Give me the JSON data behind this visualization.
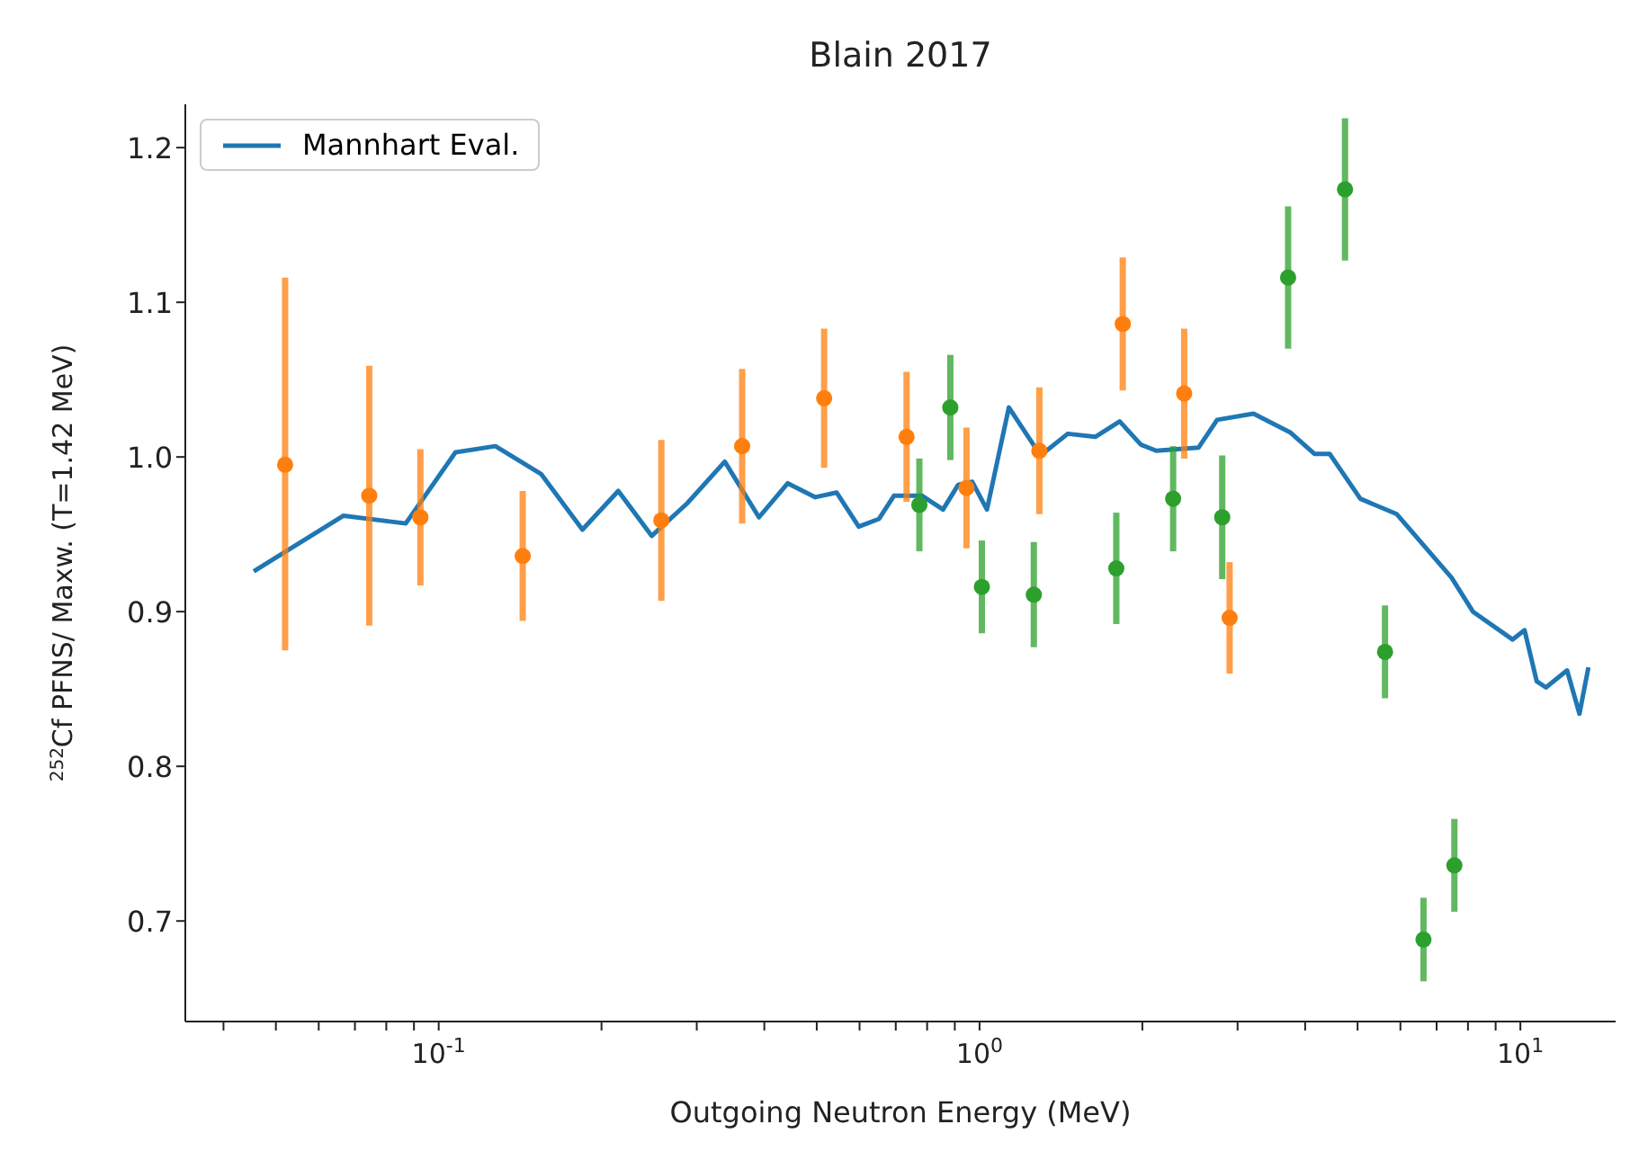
{
  "chart_data": {
    "type": "scatter",
    "title": "Blain 2017",
    "xlabel": "Outgoing Neutron Energy (MeV)",
    "ylabel": "$^{252}$Cf PFNS/ Maxw. (T=1.42 MeV)",
    "log": "x",
    "legend": "top left",
    "xlim": [
      0.034,
      15
    ],
    "ylim": [
      0.635,
      1.228
    ],
    "xticks": [
      {
        "value": 0.04,
        "label": null
      },
      {
        "value": 0.05,
        "label": null
      },
      {
        "value": 0.06,
        "label": null
      },
      {
        "value": 0.07,
        "label": null
      },
      {
        "value": 0.08,
        "label": null
      },
      {
        "value": 0.09,
        "label": null
      },
      {
        "value": 0.1,
        "label": "10$^{-1}$"
      },
      {
        "value": 0.2,
        "label": null
      },
      {
        "value": 0.3,
        "label": null
      },
      {
        "value": 0.4,
        "label": null
      },
      {
        "value": 0.5,
        "label": null
      },
      {
        "value": 0.6,
        "label": null
      },
      {
        "value": 0.7,
        "label": null
      },
      {
        "value": 0.8,
        "label": null
      },
      {
        "value": 0.9,
        "label": null
      },
      {
        "value": 1,
        "label": "10$^{0}$"
      },
      {
        "value": 2,
        "label": null
      },
      {
        "value": 3,
        "label": null
      },
      {
        "value": 4,
        "label": null
      },
      {
        "value": 5,
        "label": null
      },
      {
        "value": 6,
        "label": null
      },
      {
        "value": 7,
        "label": null
      },
      {
        "value": 8,
        "label": null
      },
      {
        "value": 9,
        "label": null
      },
      {
        "value": 10,
        "label": "10$^{1}$"
      }
    ],
    "yticks": [
      0.7,
      0.8,
      0.9,
      {
        "value": 1.0,
        "label": "1.0"
      },
      1.1,
      1.2
    ],
    "series": [
      {
        "name": "Mannhart Eval.",
        "type": "line",
        "marker": "none",
        "line_style": "solid",
        "color": "#1f77b4",
        "x": [
          0.0455,
          0.0666,
          0.0869,
          0.1074,
          0.1273,
          0.1546,
          0.1844,
          0.2148,
          0.2477,
          0.288,
          0.338,
          0.391,
          0.442,
          0.497,
          0.544,
          0.598,
          0.652,
          0.695,
          0.782,
          0.856,
          0.913,
          0.969,
          1.032,
          1.133,
          1.296,
          1.456,
          1.637,
          1.816,
          1.987,
          2.122,
          2.54,
          2.75,
          3.21,
          3.75,
          4.16,
          4.44,
          5.06,
          5.91,
          7.46,
          8.17,
          9.67,
          10.18,
          10.72,
          11.15,
          12.2,
          12.86,
          13.36
        ],
        "values": [
          0.926,
          0.962,
          0.957,
          1.003,
          1.007,
          0.989,
          0.953,
          0.978,
          0.949,
          0.97,
          0.997,
          0.961,
          0.983,
          0.974,
          0.977,
          0.955,
          0.96,
          0.975,
          0.975,
          0.966,
          0.982,
          0.984,
          0.966,
          1.032,
          1.001,
          1.015,
          1.013,
          1.023,
          1.008,
          1.004,
          1.006,
          1.024,
          1.028,
          1.016,
          1.002,
          1.002,
          0.973,
          0.963,
          0.922,
          0.9,
          0.882,
          0.888,
          0.855,
          0.851,
          0.862,
          0.834,
          0.864
        ]
      },
      {
        "marker": "circle",
        "color": "#ff7f0e",
        "x": [
          0.052,
          0.0744,
          0.0925,
          0.143,
          0.258,
          0.364,
          0.516,
          0.733,
          0.946,
          1.29,
          1.84,
          2.39,
          2.9
        ],
        "values": [
          0.995,
          0.975,
          0.961,
          0.936,
          0.959,
          1.007,
          1.038,
          1.013,
          0.98,
          1.004,
          1.086,
          1.041,
          0.896
        ],
        "errors": [
          [
            0.875,
            1.116
          ],
          0.084,
          0.044,
          0.042,
          0.052,
          0.05,
          0.045,
          0.042,
          0.039,
          0.041,
          0.043,
          0.042,
          0.036
        ]
      },
      {
        "marker": "circle",
        "color": "#2ca02c",
        "x": [
          0.774,
          0.883,
          1.01,
          1.26,
          1.79,
          2.28,
          2.81,
          3.72,
          4.74,
          5.62,
          6.62,
          7.55
        ],
        "values": [
          0.969,
          1.032,
          0.916,
          0.911,
          0.928,
          0.973,
          0.961,
          1.116,
          1.173,
          0.874,
          0.688,
          0.736
        ],
        "errors": [
          0.03,
          0.034,
          0.03,
          0.034,
          0.036,
          0.034,
          0.04,
          0.046,
          0.046,
          0.03,
          0.027,
          0.03
        ]
      }
    ]
  }
}
